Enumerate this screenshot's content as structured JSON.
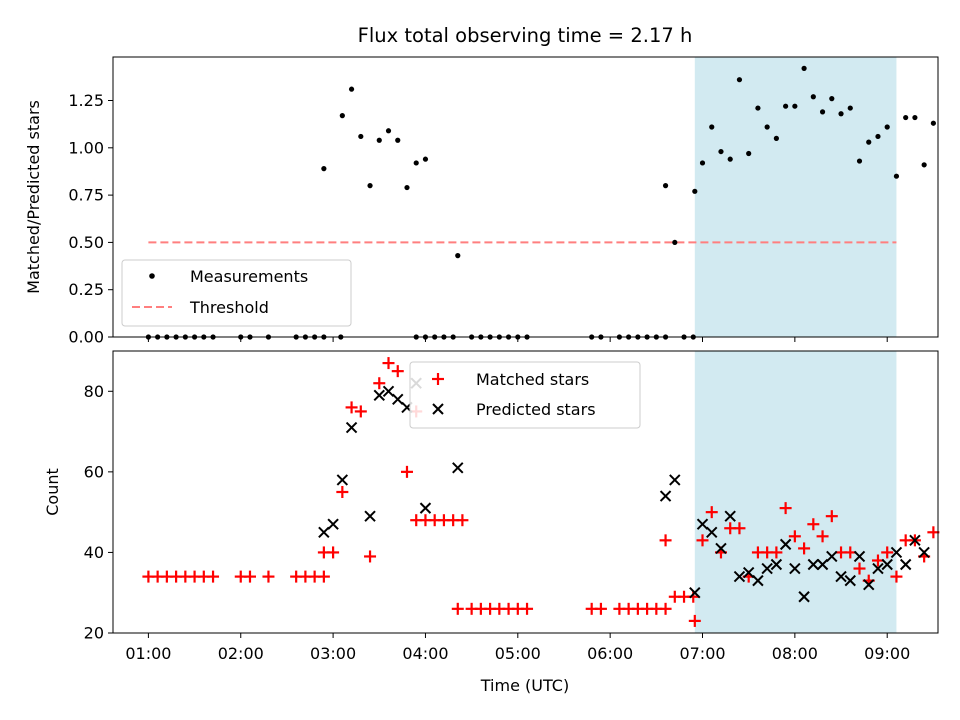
{
  "figure": {
    "title": "Flux total observing time = 2.17 h",
    "xlabel": "Time (UTC)"
  },
  "colors": {
    "highlight": "#add8e6",
    "measurement": "#000000",
    "threshold": "#ff7f7f",
    "matched": "#ff0000",
    "predicted": "#000000"
  },
  "chart_data": [
    {
      "type": "scatter",
      "panel": "top",
      "ylabel": "Matched/Predicted stars",
      "xlim": [
        "00:37",
        "09:33"
      ],
      "ylim": [
        0,
        1.48
      ],
      "yticks": [
        0.0,
        0.25,
        0.5,
        0.75,
        1.0,
        1.25
      ],
      "ytick_labels": [
        "0.00",
        "0.25",
        "0.50",
        "0.75",
        "1.00",
        "1.25"
      ],
      "highlight_span": [
        "06:55",
        "09:06"
      ],
      "legend": {
        "placement": "lower-left",
        "entries": [
          "Measurements",
          "Threshold"
        ]
      },
      "threshold": {
        "name": "Threshold",
        "value": 0.5,
        "x_range": [
          "01:00",
          "09:06"
        ]
      },
      "series": [
        {
          "name": "Measurements",
          "points": [
            [
              "01:00",
              0
            ],
            [
              "01:06",
              0
            ],
            [
              "01:12",
              0
            ],
            [
              "01:18",
              0
            ],
            [
              "01:24",
              0
            ],
            [
              "01:30",
              0
            ],
            [
              "01:36",
              0
            ],
            [
              "01:42",
              0
            ],
            [
              "02:00",
              0
            ],
            [
              "02:06",
              0
            ],
            [
              "02:18",
              0
            ],
            [
              "02:36",
              0
            ],
            [
              "02:42",
              0
            ],
            [
              "02:48",
              0
            ],
            [
              "02:54",
              0
            ],
            [
              "02:54",
              0.89
            ],
            [
              "03:05",
              0
            ],
            [
              "03:06",
              1.17
            ],
            [
              "03:12",
              1.31
            ],
            [
              "03:18",
              1.06
            ],
            [
              "03:24",
              0.8
            ],
            [
              "03:30",
              1.04
            ],
            [
              "03:36",
              1.09
            ],
            [
              "03:42",
              1.04
            ],
            [
              "03:48",
              0.79
            ],
            [
              "03:54",
              0.92
            ],
            [
              "04:00",
              0.94
            ],
            [
              "03:54",
              0
            ],
            [
              "04:00",
              0
            ],
            [
              "04:06",
              0
            ],
            [
              "04:12",
              0
            ],
            [
              "04:18",
              0
            ],
            [
              "04:21",
              0.43
            ],
            [
              "04:30",
              0
            ],
            [
              "04:36",
              0
            ],
            [
              "04:42",
              0
            ],
            [
              "04:48",
              0
            ],
            [
              "04:54",
              0
            ],
            [
              "05:00",
              0
            ],
            [
              "05:06",
              0
            ],
            [
              "05:48",
              0
            ],
            [
              "05:54",
              0
            ],
            [
              "06:06",
              0
            ],
            [
              "06:12",
              0
            ],
            [
              "06:18",
              0
            ],
            [
              "06:24",
              0
            ],
            [
              "06:30",
              0
            ],
            [
              "06:36",
              0
            ],
            [
              "06:36",
              0.8
            ],
            [
              "06:42",
              0.5
            ],
            [
              "06:48",
              0
            ],
            [
              "06:54",
              0
            ],
            [
              "06:55",
              0.77
            ],
            [
              "07:00",
              0.92
            ],
            [
              "07:06",
              1.11
            ],
            [
              "07:12",
              0.98
            ],
            [
              "07:18",
              0.94
            ],
            [
              "07:24",
              1.36
            ],
            [
              "07:30",
              0.97
            ],
            [
              "07:36",
              1.21
            ],
            [
              "07:42",
              1.11
            ],
            [
              "07:48",
              1.05
            ],
            [
              "07:54",
              1.22
            ],
            [
              "08:00",
              1.22
            ],
            [
              "08:06",
              1.42
            ],
            [
              "08:12",
              1.27
            ],
            [
              "08:18",
              1.19
            ],
            [
              "08:24",
              1.26
            ],
            [
              "08:30",
              1.18
            ],
            [
              "08:36",
              1.21
            ],
            [
              "08:42",
              0.93
            ],
            [
              "08:48",
              1.03
            ],
            [
              "08:54",
              1.06
            ],
            [
              "09:00",
              1.11
            ],
            [
              "09:06",
              0.85
            ],
            [
              "09:12",
              1.16
            ],
            [
              "09:18",
              1.16
            ],
            [
              "09:24",
              0.91
            ],
            [
              "09:30",
              1.13
            ]
          ]
        }
      ]
    },
    {
      "type": "scatter",
      "panel": "bottom",
      "ylabel": "Count",
      "xlabel": "Time (UTC)",
      "xlim": [
        "00:37",
        "09:33"
      ],
      "ylim": [
        20,
        90
      ],
      "yticks": [
        20,
        40,
        60,
        80
      ],
      "xticks": [
        "01:00",
        "02:00",
        "03:00",
        "04:00",
        "05:00",
        "06:00",
        "07:00",
        "08:00",
        "09:00"
      ],
      "highlight_span": [
        "06:55",
        "09:06"
      ],
      "legend": {
        "placement": "upper-center",
        "entries": [
          "Matched stars",
          "Predicted stars"
        ]
      },
      "series": [
        {
          "name": "Matched stars",
          "points": [
            [
              "01:00",
              34
            ],
            [
              "01:06",
              34
            ],
            [
              "01:12",
              34
            ],
            [
              "01:18",
              34
            ],
            [
              "01:24",
              34
            ],
            [
              "01:30",
              34
            ],
            [
              "01:36",
              34
            ],
            [
              "01:42",
              34
            ],
            [
              "02:00",
              34
            ],
            [
              "02:06",
              34
            ],
            [
              "02:18",
              34
            ],
            [
              "02:36",
              34
            ],
            [
              "02:42",
              34
            ],
            [
              "02:48",
              34
            ],
            [
              "02:54",
              34
            ],
            [
              "02:54",
              40
            ],
            [
              "03:00",
              40
            ],
            [
              "03:06",
              55
            ],
            [
              "03:12",
              76
            ],
            [
              "03:18",
              75
            ],
            [
              "03:24",
              39
            ],
            [
              "03:30",
              82
            ],
            [
              "03:36",
              87
            ],
            [
              "03:42",
              85
            ],
            [
              "03:48",
              60
            ],
            [
              "03:54",
              75
            ],
            [
              "04:00",
              48
            ],
            [
              "03:54",
              48
            ],
            [
              "04:06",
              48
            ],
            [
              "04:12",
              48
            ],
            [
              "04:18",
              48
            ],
            [
              "04:24",
              48
            ],
            [
              "04:21",
              26
            ],
            [
              "04:30",
              26
            ],
            [
              "04:36",
              26
            ],
            [
              "04:42",
              26
            ],
            [
              "04:48",
              26
            ],
            [
              "04:54",
              26
            ],
            [
              "05:00",
              26
            ],
            [
              "05:06",
              26
            ],
            [
              "05:48",
              26
            ],
            [
              "05:54",
              26
            ],
            [
              "06:06",
              26
            ],
            [
              "06:12",
              26
            ],
            [
              "06:18",
              26
            ],
            [
              "06:24",
              26
            ],
            [
              "06:30",
              26
            ],
            [
              "06:36",
              26
            ],
            [
              "06:36",
              43
            ],
            [
              "06:42",
              29
            ],
            [
              "06:48",
              29
            ],
            [
              "06:54",
              29
            ],
            [
              "06:55",
              23
            ],
            [
              "07:00",
              43
            ],
            [
              "07:06",
              50
            ],
            [
              "07:12",
              40
            ],
            [
              "07:18",
              46
            ],
            [
              "07:24",
              46
            ],
            [
              "07:30",
              34
            ],
            [
              "07:36",
              40
            ],
            [
              "07:42",
              40
            ],
            [
              "07:48",
              40
            ],
            [
              "07:54",
              51
            ],
            [
              "08:00",
              44
            ],
            [
              "08:06",
              41
            ],
            [
              "08:12",
              47
            ],
            [
              "08:18",
              44
            ],
            [
              "08:24",
              49
            ],
            [
              "08:30",
              40
            ],
            [
              "08:36",
              40
            ],
            [
              "08:42",
              36
            ],
            [
              "08:48",
              33
            ],
            [
              "08:54",
              38
            ],
            [
              "09:00",
              40
            ],
            [
              "09:06",
              34
            ],
            [
              "09:12",
              43
            ],
            [
              "09:18",
              43
            ],
            [
              "09:24",
              39
            ],
            [
              "09:30",
              45
            ]
          ]
        },
        {
          "name": "Predicted stars",
          "points": [
            [
              "02:54",
              45
            ],
            [
              "03:00",
              47
            ],
            [
              "03:06",
              58
            ],
            [
              "03:12",
              71
            ],
            [
              "03:24",
              49
            ],
            [
              "03:30",
              79
            ],
            [
              "03:36",
              80
            ],
            [
              "03:42",
              78
            ],
            [
              "03:48",
              76
            ],
            [
              "03:54",
              82
            ],
            [
              "04:00",
              51
            ],
            [
              "04:21",
              61
            ],
            [
              "06:36",
              54
            ],
            [
              "06:42",
              58
            ],
            [
              "06:55",
              30
            ],
            [
              "07:00",
              47
            ],
            [
              "07:06",
              45
            ],
            [
              "07:12",
              41
            ],
            [
              "07:18",
              49
            ],
            [
              "07:24",
              34
            ],
            [
              "07:30",
              35
            ],
            [
              "07:36",
              33
            ],
            [
              "07:42",
              36
            ],
            [
              "07:48",
              37
            ],
            [
              "07:54",
              42
            ],
            [
              "08:00",
              36
            ],
            [
              "08:06",
              29
            ],
            [
              "08:12",
              37
            ],
            [
              "08:18",
              37
            ],
            [
              "08:24",
              39
            ],
            [
              "08:30",
              34
            ],
            [
              "08:36",
              33
            ],
            [
              "08:42",
              39
            ],
            [
              "08:48",
              32
            ],
            [
              "08:54",
              36
            ],
            [
              "09:00",
              37
            ],
            [
              "09:06",
              40
            ],
            [
              "09:12",
              37
            ],
            [
              "09:18",
              43
            ],
            [
              "09:24",
              40
            ]
          ]
        }
      ]
    }
  ]
}
